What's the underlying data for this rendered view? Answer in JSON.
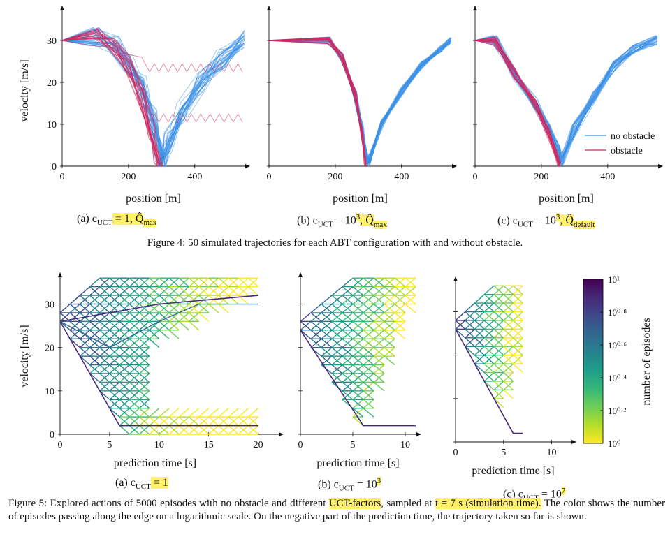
{
  "colors": {
    "no_obstacle": "#3b8fe6",
    "obstacle": "#d0285f",
    "highlight": "#fff06a",
    "colormap": [
      "#fde725",
      "#b5de2b",
      "#6ece58",
      "#35b779",
      "#1f9e89",
      "#26828e",
      "#31688e",
      "#3e4989",
      "#482878",
      "#440154"
    ]
  },
  "figure4": {
    "caption": "Figure 4: 50 simulated trajectories for each ABT configuration with and without obstacle.",
    "ylabel": "velocity [m/s]",
    "xlabel": "position [m]",
    "legend": {
      "no_obstacle": "no obstacle",
      "obstacle": "obstacle"
    },
    "subcaptions": [
      {
        "pre": "(a) c",
        "sub": "UCT",
        "eq": " = 1,",
        "q": " Q̂",
        "qsub": "max"
      },
      {
        "pre": "(b) c",
        "sub": "UCT",
        "eq": " = 10",
        "sup": "3",
        "q": ", Q̂",
        "qsub": "max"
      },
      {
        "pre": "(c) c",
        "sub": "UCT",
        "eq": " = 10",
        "sup": "3",
        "q": ", Q̂",
        "qsub": "default"
      }
    ]
  },
  "figure5": {
    "caption_a": "Figure 5: Explored actions of 5000 episodes with no obstacle and different ",
    "caption_hl1": "UCT-factors",
    "caption_b": ", sampled at ",
    "caption_hl2": "t = 7 s (simulation time).",
    "caption_c": " The color shows the number of episodes passing along the edge on a logarithmic scale. On the negative part of the prediction time, the trajectory taken so far is shown.",
    "ylabel": "velocity [m/s]",
    "xlabel": "prediction time [s]",
    "colorbar_label": "number of episodes",
    "colorbar_ticks": [
      "10¹",
      "10⁰·⁸",
      "10⁰·⁶",
      "10⁰·⁴",
      "10⁰·²",
      "10⁰"
    ],
    "subcaptions": [
      {
        "pre": "(a) c",
        "sub": "UCT",
        "eq": " = 1"
      },
      {
        "pre": "(b) c",
        "sub": "UCT",
        "eq": " = 10",
        "sup": "3"
      },
      {
        "pre": "(c) c",
        "sub": "UCT",
        "eq": " = 10",
        "sup": "7"
      }
    ]
  },
  "chart_data": [
    {
      "type": "line",
      "id": "fig4a",
      "xlabel": "position [m]",
      "ylabel": "velocity [m/s]",
      "xlim": [
        0,
        550
      ],
      "ylim": [
        0,
        36
      ],
      "xticks": [
        0,
        200,
        400
      ],
      "yticks": [
        0,
        10,
        20,
        30
      ],
      "series": [
        {
          "name": "no obstacle",
          "x": [
            0,
            100,
            160,
            200,
            240,
            270,
            290,
            300,
            320,
            360,
            420,
            480,
            550
          ],
          "y": [
            30,
            31,
            29,
            25,
            19,
            11,
            3,
            0,
            6,
            13,
            20,
            26,
            30
          ]
        },
        {
          "name": "obstacle",
          "x": [
            0,
            100,
            160,
            200,
            240,
            270,
            285,
            295
          ],
          "y": [
            30,
            31,
            28,
            24,
            17,
            9,
            3,
            0
          ]
        }
      ]
    },
    {
      "type": "line",
      "id": "fig4b",
      "xlabel": "position [m]",
      "ylabel": "",
      "xlim": [
        0,
        550
      ],
      "ylim": [
        0,
        36
      ],
      "xticks": [
        0,
        200,
        400
      ],
      "yticks": [
        0,
        10,
        20,
        30
      ],
      "series": [
        {
          "name": "no obstacle",
          "x": [
            0,
            180,
            220,
            260,
            280,
            290,
            300,
            340,
            400,
            460,
            520,
            550
          ],
          "y": [
            30,
            30,
            26,
            17,
            9,
            3,
            1,
            10,
            18,
            24,
            28,
            30
          ]
        },
        {
          "name": "obstacle",
          "x": [
            0,
            180,
            220,
            260,
            280,
            290
          ],
          "y": [
            30,
            30,
            26,
            17,
            8,
            0
          ]
        }
      ]
    },
    {
      "type": "line",
      "id": "fig4c",
      "xlabel": "position [m]",
      "ylabel": "",
      "xlim": [
        0,
        550
      ],
      "ylim": [
        0,
        36
      ],
      "xticks": [
        0,
        200,
        400
      ],
      "yticks": [
        0,
        10,
        20,
        30
      ],
      "series": [
        {
          "name": "no obstacle",
          "x": [
            0,
            60,
            120,
            180,
            220,
            250,
            260,
            300,
            360,
            420,
            480,
            550
          ],
          "y": [
            30,
            30,
            22,
            15,
            9,
            4,
            1,
            9,
            17,
            24,
            28,
            30
          ]
        },
        {
          "name": "obstacle",
          "x": [
            0,
            60,
            120,
            180,
            220,
            245,
            255
          ],
          "y": [
            30,
            30,
            22,
            15,
            8,
            3,
            0
          ]
        }
      ]
    },
    {
      "type": "heatmap",
      "id": "fig5a",
      "xlabel": "prediction time [s]",
      "ylabel": "velocity [m/s]",
      "xlim": [
        0,
        22
      ],
      "ylim": [
        0,
        37
      ],
      "xticks": [
        0,
        5,
        10,
        15,
        20
      ],
      "yticks": [
        0,
        10,
        20,
        30
      ],
      "colorscale": "log",
      "crange": [
        1,
        10
      ]
    },
    {
      "type": "heatmap",
      "id": "fig5b",
      "xlabel": "prediction time [s]",
      "ylabel": "",
      "xlim": [
        0,
        11
      ],
      "ylim": [
        0,
        37
      ],
      "xticks": [
        0,
        5,
        10
      ],
      "yticks": [
        0,
        10,
        20,
        30
      ],
      "colorscale": "log",
      "crange": [
        1,
        10
      ]
    },
    {
      "type": "heatmap",
      "id": "fig5c",
      "xlabel": "prediction time [s]",
      "ylabel": "",
      "xlim": [
        0,
        12
      ],
      "ylim": [
        0,
        37
      ],
      "xticks": [
        0,
        5,
        10
      ],
      "yticks": [
        0,
        10,
        20,
        30
      ],
      "colorscale": "log",
      "crange": [
        1,
        10
      ]
    }
  ]
}
